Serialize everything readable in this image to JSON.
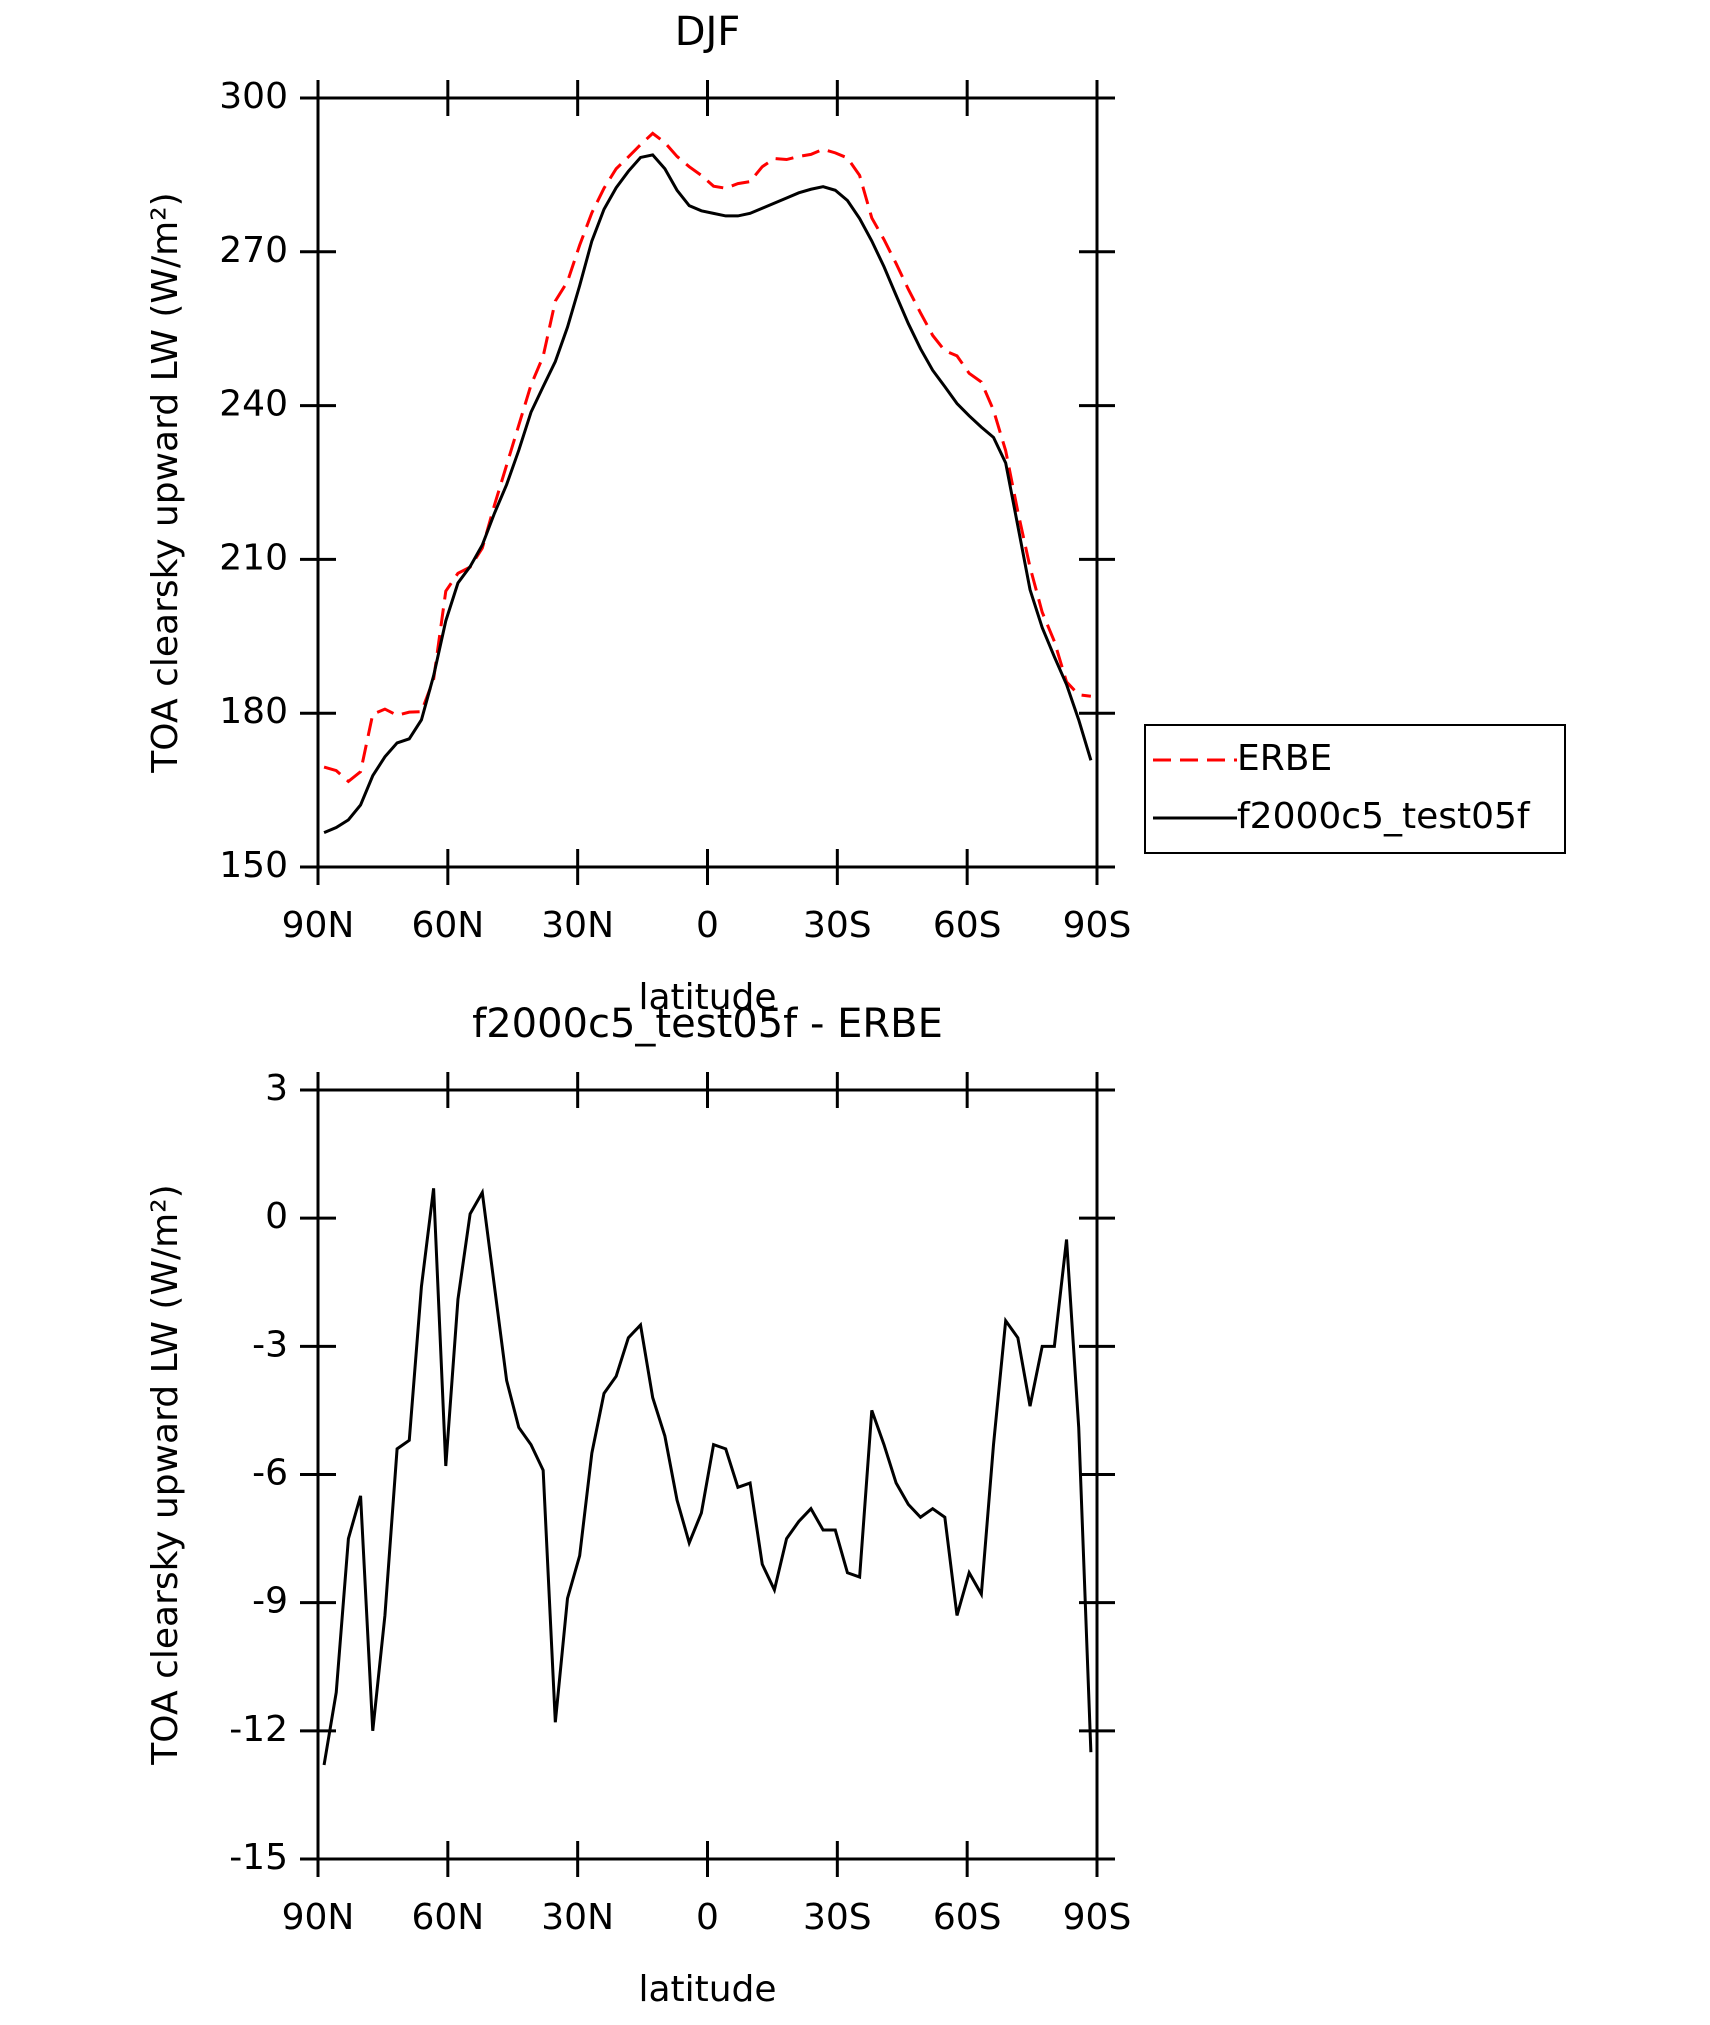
{
  "chart_data": [
    {
      "type": "line",
      "title": "DJF",
      "xlabel": "latitude",
      "ylabel": "TOA clearsky upward LW (W/m²)",
      "x": [
        88.6,
        85.7875,
        82.975,
        80.1625,
        77.35,
        74.5375,
        71.725,
        68.9125,
        66.1,
        63.2875,
        60.475,
        57.6625,
        54.85,
        52.0375,
        49.225,
        46.4125,
        43.6,
        40.7875,
        37.975,
        35.1625,
        32.35,
        29.5375,
        26.725,
        23.9125,
        21.1,
        18.2875,
        15.475,
        12.6625,
        9.85,
        7.0375,
        4.225,
        1.4125,
        -1.4,
        -4.2125,
        -7.025,
        -9.8375,
        -12.65,
        -15.4625,
        -18.275,
        -21.0875,
        -23.9,
        -26.7125,
        -29.525,
        -32.3375,
        -35.15,
        -37.9625,
        -40.775,
        -43.5875,
        -46.4,
        -49.2125,
        -52.025,
        -54.8375,
        -57.65,
        -60.4625,
        -63.275,
        -66.0875,
        -68.9,
        -71.7125,
        -74.525,
        -77.3375,
        -80.15,
        -82.9625,
        -85.775,
        -88.5875
      ],
      "series": [
        {
          "name": "ERBE",
          "color": "#ff0000",
          "style": "dashed",
          "values": [
            169.5,
            168.8,
            166.7,
            168.6,
            179.8,
            180.8,
            179.6,
            180.2,
            180.3,
            186.6,
            203.8,
            207.3,
            208.5,
            212.2,
            220.6,
            228.4,
            236.2,
            244.0,
            249.6,
            260.4,
            264.2,
            271.3,
            277.6,
            282.4,
            286.2,
            288.5,
            290.9,
            293.1,
            291.3,
            288.6,
            286.6,
            284.9,
            282.8,
            282.4,
            283.3,
            283.7,
            286.6,
            288.2,
            288.0,
            288.6,
            289.0,
            290.0,
            289.3,
            288.3,
            284.9,
            276.6,
            272.4,
            267.7,
            262.7,
            258.1,
            253.7,
            250.7,
            249.7,
            246.3,
            244.6,
            239.1,
            231.2,
            219.3,
            208.5,
            199.7,
            194.0,
            186.1,
            183.6,
            183.3
          ]
        },
        {
          "name": "f2000c5_test05f",
          "color": "#000000",
          "style": "solid",
          "values": [
            156.7,
            157.7,
            159.2,
            162.1,
            167.8,
            171.5,
            174.2,
            175.0,
            178.7,
            187.3,
            198.0,
            205.4,
            208.6,
            212.8,
            219.0,
            224.6,
            231.3,
            238.7,
            243.7,
            248.6,
            255.3,
            263.4,
            272.1,
            278.3,
            282.5,
            285.7,
            288.4,
            288.9,
            286.2,
            282.0,
            279.0,
            278.0,
            277.5,
            277.0,
            277.0,
            277.5,
            278.5,
            279.5,
            280.5,
            281.5,
            282.2,
            282.7,
            282.0,
            280.0,
            276.5,
            272.1,
            267.1,
            261.5,
            256.0,
            251.1,
            246.9,
            243.7,
            240.4,
            238.0,
            235.8,
            233.8,
            228.8,
            216.5,
            204.1,
            196.7,
            191.0,
            185.6,
            178.7,
            170.8
          ]
        }
      ],
      "xlim": [
        90,
        -90
      ],
      "xticks": [
        {
          "value": 90,
          "label": "90N"
        },
        {
          "value": 60,
          "label": "60N"
        },
        {
          "value": 30,
          "label": "30N"
        },
        0,
        {
          "value": -30,
          "label": "30S"
        },
        {
          "value": -60,
          "label": "60S"
        },
        {
          "value": -90,
          "label": "90S"
        }
      ],
      "ylim": [
        150,
        300
      ],
      "yticks": [
        150,
        180,
        210,
        240,
        270,
        300
      ],
      "legend": "right"
    },
    {
      "type": "line",
      "title": "f2000c5_test05f - ERBE",
      "xlabel": "latitude",
      "ylabel": "TOA clearsky upward LW (W/m²)",
      "x": [
        88.6,
        85.7875,
        82.975,
        80.1625,
        77.35,
        74.5375,
        71.725,
        68.9125,
        66.1,
        63.2875,
        60.475,
        57.6625,
        54.85,
        52.0375,
        49.225,
        46.4125,
        43.6,
        40.7875,
        37.975,
        35.1625,
        32.35,
        29.5375,
        26.725,
        23.9125,
        21.1,
        18.2875,
        15.475,
        12.6625,
        9.85,
        7.0375,
        4.225,
        1.4125,
        -1.4,
        -4.2125,
        -7.025,
        -9.8375,
        -12.65,
        -15.4625,
        -18.275,
        -21.0875,
        -23.9,
        -26.7125,
        -29.525,
        -32.3375,
        -35.15,
        -37.9625,
        -40.775,
        -43.5875,
        -46.4,
        -49.2125,
        -52.025,
        -54.8375,
        -57.65,
        -60.4625,
        -63.275,
        -66.0875,
        -68.9,
        -71.7125,
        -74.525,
        -77.3375,
        -80.15,
        -82.9625,
        -85.775,
        -88.5875
      ],
      "series": [
        {
          "color": "#000000",
          "style": "solid",
          "values": [
            -12.8,
            -11.1,
            -7.5,
            -6.5,
            -12.0,
            -9.3,
            -5.4,
            -5.2,
            -1.6,
            0.7,
            -5.8,
            -1.9,
            0.1,
            0.6,
            -1.6,
            -3.8,
            -4.9,
            -5.3,
            -5.9,
            -11.8,
            -8.9,
            -7.9,
            -5.5,
            -4.1,
            -3.7,
            -2.8,
            -2.5,
            -4.2,
            -5.1,
            -6.6,
            -7.6,
            -6.9,
            -5.3,
            -5.4,
            -6.3,
            -6.2,
            -8.1,
            -8.7,
            -7.5,
            -7.1,
            -6.8,
            -7.3,
            -7.3,
            -8.3,
            -8.4,
            -4.5,
            -5.3,
            -6.2,
            -6.7,
            -7.0,
            -6.8,
            -7.0,
            -9.3,
            -8.3,
            -8.8,
            -5.3,
            -2.4,
            -2.8,
            -4.4,
            -3.0,
            -3.0,
            -0.5,
            -4.9,
            -12.5
          ]
        }
      ],
      "xlim": [
        90,
        -90
      ],
      "xticks": [
        {
          "value": 90,
          "label": "90N"
        },
        {
          "value": 60,
          "label": "60N"
        },
        {
          "value": 30,
          "label": "30N"
        },
        0,
        {
          "value": -30,
          "label": "30S"
        },
        {
          "value": -60,
          "label": "60S"
        },
        {
          "value": -90,
          "label": "90S"
        }
      ],
      "ylim": [
        -15,
        3
      ],
      "yticks": [
        -15,
        -12,
        -9,
        -6,
        -3,
        0,
        3
      ]
    }
  ]
}
